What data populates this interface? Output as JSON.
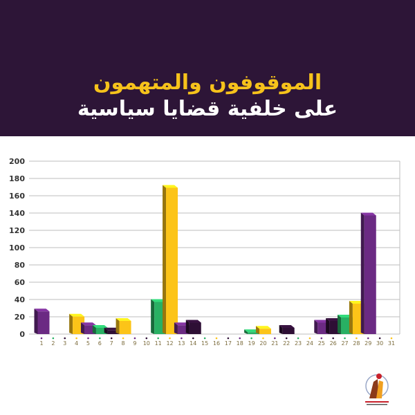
{
  "header": {
    "title_line1": "الموقوفون والمتهمون",
    "title_line2": "على خلفية قضايا سياسية"
  },
  "colors": {
    "background": "#2d1537",
    "purple": "#6b2a83",
    "green": "#28b063",
    "dark": "#2e0f35",
    "yellow": "#fcc418",
    "title_accent": "#f6c21b"
  },
  "chart_data": {
    "type": "bar",
    "title": "",
    "xlabel": "",
    "ylabel": "",
    "ylim": [
      0,
      200
    ],
    "yticks": [
      0,
      20,
      40,
      60,
      80,
      100,
      120,
      140,
      160,
      180,
      200
    ],
    "grid": true,
    "categories": [
      "1",
      "2",
      "3",
      "4",
      "5",
      "6",
      "7",
      "8",
      "9",
      "10",
      "11",
      "12",
      "13",
      "14",
      "15",
      "16",
      "17",
      "18",
      "19",
      "20",
      "21",
      "22",
      "23",
      "24",
      "25",
      "26",
      "27",
      "28",
      "29",
      "30",
      "31"
    ],
    "values": [
      27,
      0,
      0,
      21,
      11,
      8,
      5,
      16,
      0,
      0,
      38,
      170,
      11,
      14,
      0,
      0,
      0,
      0,
      3,
      7,
      0,
      8,
      0,
      0,
      14,
      16,
      20,
      36,
      138,
      0,
      0
    ],
    "bar_colors": [
      "purple",
      "green",
      "dark",
      "yellow",
      "purple",
      "green",
      "dark",
      "yellow",
      "purple",
      "dark",
      "green",
      "yellow",
      "purple",
      "dark",
      "green",
      "yellow",
      "dark",
      "purple",
      "green",
      "yellow",
      "purple",
      "dark",
      "green",
      "yellow",
      "purple",
      "dark",
      "green",
      "yellow",
      "purple",
      "dark",
      "yellow"
    ]
  }
}
